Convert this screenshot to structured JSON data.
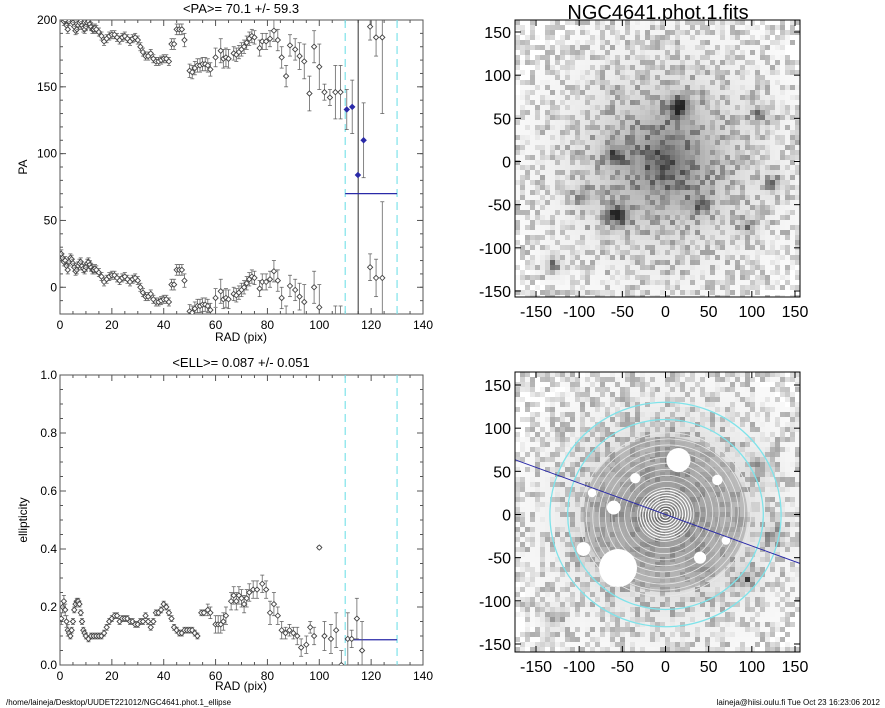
{
  "footer": {
    "path": "/home/laineja/Desktop/UUDET221012/NGC4641.phot.1_ellipse",
    "user_date": "laineja@hiisi.oulu.fi  Tue Oct 23 16:23:06 2012"
  },
  "colors": {
    "cyan": "#7fe3ea",
    "blue": "#2a2aa8",
    "points": "#444444"
  },
  "chart_data": [
    {
      "type": "scatter",
      "title": "<PA>=  70.1 +/-  59.3",
      "xlabel": "RAD (pix)",
      "ylabel": "PA",
      "xlim": [
        0,
        140
      ],
      "ylim": [
        -20,
        200
      ],
      "xticks": [
        "0",
        "20",
        "40",
        "60",
        "80",
        "100",
        "120",
        "140"
      ],
      "yticks": [
        "0",
        "50",
        "100",
        "150",
        "200"
      ],
      "wrap_offset": 180,
      "mean": 70.1,
      "mean_range": [
        110,
        130
      ],
      "fit_bounds": [
        110,
        130
      ],
      "vertical_line": 115,
      "points": [
        [
          0.5,
          205,
          3
        ],
        [
          1,
          202,
          3
        ],
        [
          1.5,
          199,
          3
        ],
        [
          2,
          200,
          3
        ],
        [
          2.5,
          196,
          3
        ],
        [
          3,
          193,
          3
        ],
        [
          3.5,
          199,
          3
        ],
        [
          4,
          202,
          3
        ],
        [
          4.5,
          201,
          3
        ],
        [
          5,
          198,
          3
        ],
        [
          5.5,
          195,
          3
        ],
        [
          6,
          192,
          3
        ],
        [
          6.5,
          193,
          3
        ],
        [
          7,
          196,
          3
        ],
        [
          7.5,
          198,
          3
        ],
        [
          8,
          199,
          3
        ],
        [
          8.5,
          196,
          3
        ],
        [
          9,
          194,
          3
        ],
        [
          9.5,
          193,
          3
        ],
        [
          10,
          195,
          3
        ],
        [
          10.5,
          198,
          3
        ],
        [
          11,
          199,
          3
        ],
        [
          11.5,
          197,
          3
        ],
        [
          12,
          195,
          3
        ],
        [
          12.5,
          193,
          3
        ],
        [
          13,
          193,
          3
        ],
        [
          13.5,
          194,
          3
        ],
        [
          14,
          193,
          3
        ],
        [
          15,
          191,
          3
        ],
        [
          16,
          188,
          3
        ],
        [
          17,
          184,
          3
        ],
        [
          18,
          186,
          3
        ],
        [
          19,
          188,
          3
        ],
        [
          20,
          189,
          3
        ],
        [
          21,
          189,
          3
        ],
        [
          22,
          187,
          3
        ],
        [
          23,
          185,
          3
        ],
        [
          24,
          187,
          3
        ],
        [
          25,
          188,
          3
        ],
        [
          26,
          186,
          3
        ],
        [
          27,
          184,
          3
        ],
        [
          28,
          186,
          3
        ],
        [
          29,
          187,
          3
        ],
        [
          30,
          185,
          3
        ],
        [
          31,
          180,
          3
        ],
        [
          32,
          176,
          3
        ],
        [
          33,
          173,
          3
        ],
        [
          34,
          173,
          3
        ],
        [
          35,
          175,
          3
        ],
        [
          36,
          171,
          3
        ],
        [
          37,
          169,
          3
        ],
        [
          38,
          169,
          3
        ],
        [
          39,
          170,
          3
        ],
        [
          40,
          171,
          3
        ],
        [
          41,
          171,
          3
        ],
        [
          42,
          169,
          3
        ],
        [
          43,
          182,
          4
        ],
        [
          44,
          182,
          4
        ],
        [
          45,
          193,
          4
        ],
        [
          46,
          193,
          4
        ],
        [
          47,
          193,
          4
        ],
        [
          48,
          185,
          5
        ],
        [
          50,
          162,
          5
        ],
        [
          51,
          161,
          5
        ],
        [
          52,
          164,
          5
        ],
        [
          53,
          166,
          5
        ],
        [
          54,
          166,
          5
        ],
        [
          55,
          167,
          5
        ],
        [
          56,
          167,
          5
        ],
        [
          57,
          166,
          5
        ],
        [
          58,
          163,
          5
        ],
        [
          60,
          172,
          7
        ],
        [
          62,
          177,
          9
        ],
        [
          63,
          171,
          7
        ],
        [
          64,
          172,
          7
        ],
        [
          65,
          171,
          7
        ],
        [
          67,
          175,
          5
        ],
        [
          68,
          174,
          5
        ],
        [
          69,
          176,
          5
        ],
        [
          70,
          178,
          5
        ],
        [
          71,
          180,
          5
        ],
        [
          72,
          183,
          5
        ],
        [
          73,
          186,
          5
        ],
        [
          74,
          188,
          5
        ],
        [
          75,
          187,
          5
        ],
        [
          77,
          179,
          6
        ],
        [
          78,
          184,
          6
        ],
        [
          79.5,
          184,
          6
        ],
        [
          81,
          186,
          6
        ],
        [
          82.5,
          192,
          8
        ],
        [
          84,
          185,
          8
        ],
        [
          85.5,
          172,
          8
        ],
        [
          87.2,
          158,
          8
        ],
        [
          88.7,
          181,
          8
        ],
        [
          90.7,
          178,
          8
        ],
        [
          92.4,
          173,
          10
        ],
        [
          94.2,
          169,
          13
        ],
        [
          96.2,
          145,
          13
        ],
        [
          98,
          180,
          12
        ],
        [
          100,
          165,
          17
        ],
        [
          102,
          146,
          6
        ],
        [
          104.1,
          142,
          6
        ],
        [
          106.2,
          146,
          20
        ],
        [
          108.2,
          146,
          20
        ],
        [
          110.6,
          133,
          15,
          "blue"
        ],
        [
          112.7,
          135,
          20,
          "blue"
        ],
        [
          114.9,
          84,
          300,
          "blue"
        ],
        [
          117.1,
          110,
          28,
          "blue"
        ],
        [
          119.6,
          195,
          10
        ],
        [
          121.9,
          187,
          14
        ],
        [
          124.3,
          187,
          57
        ]
      ]
    },
    {
      "type": "scatter",
      "title": "<ELL>= 0.087 +/-  0.051",
      "xlabel": "RAD (pix)",
      "ylabel": "ellipticity",
      "xlim": [
        0,
        140
      ],
      "ylim": [
        0,
        1
      ],
      "xticks": [
        "0",
        "20",
        "40",
        "60",
        "80",
        "100",
        "120",
        "140"
      ],
      "yticks": [
        "0.0",
        "0.2",
        "0.4",
        "0.6",
        "0.8",
        "1.0"
      ],
      "mean": 0.087,
      "mean_range": [
        110,
        130
      ],
      "fit_bounds": [
        110,
        130
      ],
      "points": [
        [
          0.5,
          0.16,
          0.02
        ],
        [
          1,
          0.2,
          0.02
        ],
        [
          1.5,
          0.22,
          0.02
        ],
        [
          2,
          0.19,
          0.02
        ],
        [
          2.5,
          0.15,
          0.02
        ],
        [
          3,
          0.12,
          0.02
        ],
        [
          3.5,
          0.11,
          0.01
        ],
        [
          4,
          0.1,
          0.01
        ],
        [
          4.5,
          0.12,
          0.01
        ],
        [
          5,
          0.15,
          0.01
        ],
        [
          5.5,
          0.19,
          0.01
        ],
        [
          6,
          0.21,
          0.01
        ],
        [
          6.5,
          0.22,
          0.01
        ],
        [
          7,
          0.22,
          0.01
        ],
        [
          7.5,
          0.21,
          0.01
        ],
        [
          8,
          0.18,
          0.01
        ],
        [
          8.5,
          0.15,
          0.01
        ],
        [
          9,
          0.12,
          0.01
        ],
        [
          9.5,
          0.11,
          0.01
        ],
        [
          10,
          0.1,
          0.01
        ],
        [
          11,
          0.09,
          0.01
        ],
        [
          12,
          0.1,
          0.01
        ],
        [
          13,
          0.1,
          0.01
        ],
        [
          14,
          0.1,
          0.01
        ],
        [
          15,
          0.1,
          0.01
        ],
        [
          16,
          0.1,
          0.01
        ],
        [
          17,
          0.11,
          0.01
        ],
        [
          18,
          0.13,
          0.01
        ],
        [
          19,
          0.15,
          0.01
        ],
        [
          20,
          0.16,
          0.01
        ],
        [
          21,
          0.17,
          0.01
        ],
        [
          22,
          0.17,
          0.01
        ],
        [
          23,
          0.15,
          0.01
        ],
        [
          24,
          0.16,
          0.01
        ],
        [
          25,
          0.16,
          0.01
        ],
        [
          26,
          0.16,
          0.01
        ],
        [
          27,
          0.15,
          0.01
        ],
        [
          28,
          0.15,
          0.01
        ],
        [
          29,
          0.14,
          0.01
        ],
        [
          30,
          0.14,
          0.01
        ],
        [
          31,
          0.15,
          0.01
        ],
        [
          32,
          0.15,
          0.01
        ],
        [
          33,
          0.17,
          0.01
        ],
        [
          34,
          0.15,
          0.01
        ],
        [
          35,
          0.13,
          0.01
        ],
        [
          36,
          0.15,
          0.01
        ],
        [
          37,
          0.18,
          0.01
        ],
        [
          38,
          0.18,
          0.01
        ],
        [
          39,
          0.19,
          0.01
        ],
        [
          40,
          0.21,
          0.01
        ],
        [
          41,
          0.2,
          0.01
        ],
        [
          42,
          0.18,
          0.01
        ],
        [
          43,
          0.16,
          0.01
        ],
        [
          44,
          0.13,
          0.01
        ],
        [
          45,
          0.12,
          0.01
        ],
        [
          46,
          0.11,
          0.01
        ],
        [
          47,
          0.11,
          0.01
        ],
        [
          48,
          0.12,
          0.01
        ],
        [
          49,
          0.12,
          0.01
        ],
        [
          50,
          0.12,
          0.01
        ],
        [
          51,
          0.12,
          0.01
        ],
        [
          52,
          0.11,
          0.01
        ],
        [
          53,
          0.1,
          0.01
        ],
        [
          54.5,
          0.18,
          0.01
        ],
        [
          55.5,
          0.18,
          0.01
        ],
        [
          57,
          0.19,
          0.02
        ],
        [
          58,
          0.18,
          0.02
        ],
        [
          60,
          0.14,
          0.03
        ],
        [
          61,
          0.14,
          0.03
        ],
        [
          62,
          0.14,
          0.03
        ],
        [
          63,
          0.15,
          0.03
        ],
        [
          64,
          0.17,
          0.03
        ],
        [
          66,
          0.22,
          0.03
        ],
        [
          67,
          0.24,
          0.03
        ],
        [
          68,
          0.22,
          0.03
        ],
        [
          69,
          0.24,
          0.03
        ],
        [
          70,
          0.23,
          0.03
        ],
        [
          71,
          0.21,
          0.03
        ],
        [
          72,
          0.23,
          0.03
        ],
        [
          73,
          0.25,
          0.03
        ],
        [
          74.5,
          0.26,
          0.03
        ],
        [
          76,
          0.26,
          0.03
        ],
        [
          78,
          0.28,
          0.03
        ],
        [
          79.5,
          0.26,
          0.03
        ],
        [
          81,
          0.18,
          0.04
        ],
        [
          82.5,
          0.21,
          0.04
        ],
        [
          84,
          0.17,
          0.03
        ],
        [
          85.5,
          0.12,
          0.03
        ],
        [
          87,
          0.11,
          0.02
        ],
        [
          88.5,
          0.12,
          0.02
        ],
        [
          90,
          0.11,
          0.02
        ],
        [
          91.5,
          0.1,
          0.03
        ],
        [
          93,
          0.06,
          0.03
        ],
        [
          95,
          0.07,
          0.03
        ],
        [
          96.5,
          0.13,
          0.02
        ],
        [
          98,
          0.1,
          0.03
        ],
        [
          100,
          0.405,
          0.005
        ],
        [
          102,
          0.1,
          0.05
        ],
        [
          104.5,
          0.09,
          0.05
        ],
        [
          106.5,
          0.12,
          0.06
        ],
        [
          108.5,
          0.0,
          0.05
        ],
        [
          111,
          0.09,
          0.09
        ],
        [
          112.5,
          0.09,
          0.03
        ],
        [
          114.5,
          0.16,
          0.07
        ],
        [
          116.5,
          0.05,
          0.1
        ]
      ]
    },
    {
      "type": "heatmap",
      "title": "NGC4641.phot.1.fits",
      "xticks": [
        "-150",
        "-100",
        "-50",
        "0",
        "50",
        "100",
        "150"
      ],
      "yticks": [
        "150",
        "100",
        "50",
        "0",
        "-50",
        "-100",
        "-150"
      ]
    },
    {
      "type": "heatmap",
      "title": "",
      "xticks": [
        "-150",
        "-100",
        "-50",
        "0",
        "50",
        "100",
        "150"
      ],
      "yticks": [
        "150",
        "100",
        "50",
        "0",
        "-50",
        "-100",
        "-150"
      ],
      "fit_radii": [
        110,
        130
      ],
      "pa_line_deg": 70.1
    }
  ]
}
